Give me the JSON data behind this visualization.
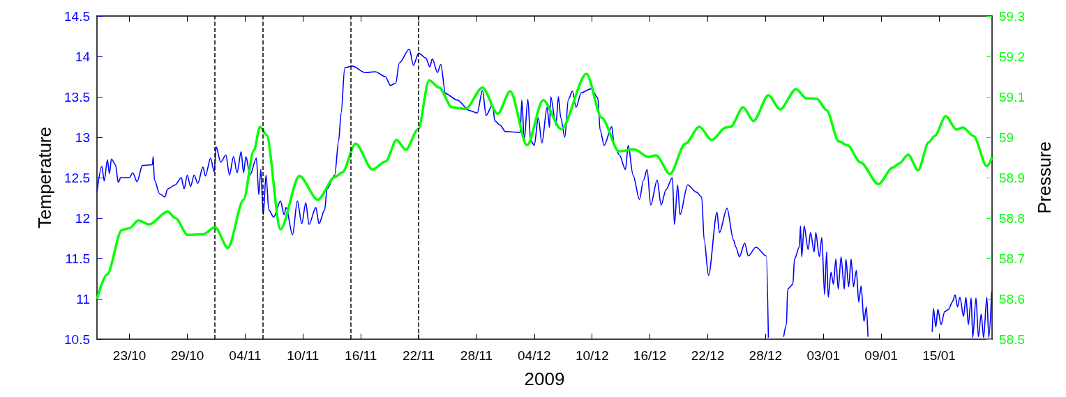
{
  "chart_data": {
    "type": "line",
    "xlabel": "2009",
    "ylabel": "Temperature",
    "y2label": "Pressure",
    "xlim": [
      "2009-10-19T15:00",
      "2010-01-20T12:00"
    ],
    "xticks": [
      {
        "value": "2009-10-23",
        "label": "23/10"
      },
      {
        "value": "2009-10-29",
        "label": "29/10"
      },
      {
        "value": "2009-11-04",
        "label": "04/11"
      },
      {
        "value": "2009-11-10",
        "label": "10/11"
      },
      {
        "value": "2009-11-16",
        "label": "16/11"
      },
      {
        "value": "2009-11-22",
        "label": "22/11"
      },
      {
        "value": "2009-11-28",
        "label": "28/11"
      },
      {
        "value": "2009-12-04",
        "label": "04/12"
      },
      {
        "value": "2009-12-10",
        "label": "10/12"
      },
      {
        "value": "2009-12-16",
        "label": "16/12"
      },
      {
        "value": "2009-12-22",
        "label": "22/12"
      },
      {
        "value": "2009-12-28",
        "label": "28/12"
      },
      {
        "value": "2010-01-03",
        "label": "03/01"
      },
      {
        "value": "2010-01-09",
        "label": "09/01"
      },
      {
        "value": "2010-01-15",
        "label": "15/01"
      }
    ],
    "ylim": [
      10.5,
      14.5
    ],
    "yticks": [
      10.5,
      11,
      11.5,
      12,
      12.5,
      13,
      13.5,
      14,
      14.5
    ],
    "y2lim": [
      58.5,
      59.3
    ],
    "y2ticks": [
      58.5,
      58.6,
      58.7,
      58.8,
      58.9,
      59,
      59.1,
      59.2,
      59.3
    ],
    "ref_lines": [
      {
        "axis": "x",
        "value": "2009-10-31T21:00",
        "color": "#000000",
        "line_style": "dashed"
      },
      {
        "axis": "x",
        "value": "2009-11-05T20:00",
        "color": "#000000",
        "line_style": "dashed"
      },
      {
        "axis": "x",
        "value": "2009-11-14T23:00",
        "color": "#000000",
        "line_style": "dashed"
      },
      {
        "axis": "x",
        "value": "2009-11-22T00:00",
        "color": "#000000",
        "line_style": "dashed"
      }
    ],
    "series": [
      {
        "color": "#0000ff",
        "axis": "y",
        "x": [
          "2009-10-19T15:00",
          "2009-10-20T03:00",
          "2009-10-20T09:00",
          "2009-10-20T17:00",
          "2009-10-20T22:00",
          "2009-10-21T03:00",
          "2009-10-21T13:00",
          "2009-10-21T20:00",
          "2009-10-22T02:00",
          "2009-10-23T00:00",
          "2009-10-23T08:00",
          "2009-10-23T19:00",
          "2009-10-24T08:00",
          "2009-10-25T09:00",
          "2009-10-25T11:00",
          "2009-10-25T14:00",
          "2009-10-26T03:00",
          "2009-10-26T16:00",
          "2009-10-26T23:00",
          "2009-10-27T18:00",
          "2009-10-28T09:00",
          "2009-10-28T16:00",
          "2009-10-29T00:00",
          "2009-10-29T08:00",
          "2009-10-29T17:00",
          "2009-10-30T02:00",
          "2009-10-30T15:00",
          "2009-10-30T21:00",
          "2009-10-31T10:00",
          "2009-10-31T19:00",
          "2009-11-01T00:00",
          "2009-11-01T11:00",
          "2009-11-02T00:00",
          "2009-11-02T09:00",
          "2009-11-02T19:00",
          "2009-11-03T04:00",
          "2009-11-03T14:00",
          "2009-11-03T20:00",
          "2009-11-04T02:00",
          "2009-11-04T12:00",
          "2009-11-05T04:00",
          "2009-11-05T10:00",
          "2009-11-05T15:00",
          "2009-11-05T21:00",
          "2009-11-06T04:00",
          "2009-11-06T11:00",
          "2009-11-06T23:00",
          "2009-11-07T16:00",
          "2009-11-08T01:00",
          "2009-11-08T06:00",
          "2009-11-08T22:00",
          "2009-11-09T10:00",
          "2009-11-09T21:00",
          "2009-11-10T07:00",
          "2009-11-10T15:00",
          "2009-11-11T08:00",
          "2009-11-11T16:00",
          "2009-11-12T06:00",
          "2009-11-12T12:00",
          "2009-11-13T07:00",
          "2009-11-13T17:00",
          "2009-11-13T23:00",
          "2009-11-14T08:00",
          "2009-11-15T03:00",
          "2009-11-16T11:00",
          "2009-11-17T12:00",
          "2009-11-18T13:00",
          "2009-11-19T02:00",
          "2009-11-19T15:00",
          "2009-11-20T00:00",
          "2009-11-21T01:00",
          "2009-11-21T11:00",
          "2009-11-22T00:00",
          "2009-11-22T18:00",
          "2009-11-23T04:00",
          "2009-11-23T10:00",
          "2009-11-23T23:00",
          "2009-11-24T07:00",
          "2009-11-24T19:00",
          "2009-11-26T00:00",
          "2009-11-27T07:00",
          "2009-11-28T02:00",
          "2009-11-28T15:00",
          "2009-11-29T00:00",
          "2009-11-29T16:00",
          "2009-11-29T22:00",
          "2009-11-30T11:00",
          "2009-12-01T00:00",
          "2009-12-02T13:00",
          "2009-12-02T17:00",
          "2009-12-02T23:00",
          "2009-12-03T08:00",
          "2009-12-03T15:00",
          "2009-12-04T00:00",
          "2009-12-04T10:00",
          "2009-12-04T19:00",
          "2009-12-05T08:00",
          "2009-12-05T14:00",
          "2009-12-05T17:00",
          "2009-12-06T06:00",
          "2009-12-06T12:00",
          "2009-12-06T18:00",
          "2009-12-07T04:00",
          "2009-12-07T13:00",
          "2009-12-07T23:00",
          "2009-12-08T08:00",
          "2009-12-08T21:00",
          "2009-12-09T22:00",
          "2009-12-10T14:00",
          "2009-12-10T20:00",
          "2009-12-11T06:00",
          "2009-12-12T01:00",
          "2009-12-12T07:00",
          "2009-12-12T20:00",
          "2009-12-13T11:00",
          "2009-12-13T18:00",
          "2009-12-14T06:00",
          "2009-12-14T22:00",
          "2009-12-15T08:00",
          "2009-12-15T17:00",
          "2009-12-16T02:00",
          "2009-12-16T18:00",
          "2009-12-17T04:00",
          "2009-12-17T16:00",
          "2009-12-18T08:00",
          "2009-12-18T13:00",
          "2009-12-18T21:00",
          "2009-12-19T03:00",
          "2009-12-19T22:00",
          "2009-12-20T20:00",
          "2009-12-21T09:00",
          "2009-12-21T15:00",
          "2009-12-22T02:00",
          "2009-12-22T23:00",
          "2009-12-23T05:00",
          "2009-12-24T00:00",
          "2009-12-24T16:00",
          "2009-12-24T22:00",
          "2009-12-25T07:00",
          "2009-12-25T20:00",
          "2009-12-26T05:00",
          "2009-12-27T00:00",
          "2009-12-28T02:00",
          "2009-12-28T07:00",
          "2009-12-28T21:00",
          "2009-12-29T21:00",
          "2009-12-30T04:00",
          "2009-12-30T07:00",
          "2009-12-30T20:00",
          "2009-12-31T00:00",
          "2009-12-31T12:00",
          "2009-12-31T15:00",
          "2009-12-31T18:00",
          "2010-01-01T00:00",
          "2010-01-01T10:00",
          "2010-01-01T16:00",
          "2010-01-02T01:00",
          "2010-01-02T05:00",
          "2010-01-02T14:00",
          "2010-01-02T20:00",
          "2010-01-03T03:00",
          "2010-01-03T08:00",
          "2010-01-03T12:00",
          "2010-01-03T19:00",
          "2010-01-04T01:00",
          "2010-01-04T07:00",
          "2010-01-04T13:00",
          "2010-01-04T20:00",
          "2010-01-05T04:00",
          "2010-01-05T08:00",
          "2010-01-05T15:00",
          "2010-01-05T21:00",
          "2010-01-06T03:00",
          "2010-01-06T10:00",
          "2010-01-06T16:00",
          "2010-01-06T22:00",
          "2010-01-07T05:00",
          "2010-01-07T11:00",
          "2010-01-07T15:00",
          "2010-01-08T06:00",
          "2010-01-14T07:00",
          "2010-01-14T10:00",
          "2010-01-14T16:00",
          "2010-01-14T21:00",
          "2010-01-15T05:00",
          "2010-01-15T14:00",
          "2010-01-16T00:00",
          "2010-01-16T09:00",
          "2010-01-16T16:00",
          "2010-01-16T22:00",
          "2010-01-17T04:00",
          "2010-01-17T13:00",
          "2010-01-17T19:00",
          "2010-01-18T01:00",
          "2010-01-18T08:00",
          "2010-01-18T12:00",
          "2010-01-18T20:00",
          "2010-01-19T02:00",
          "2010-01-19T09:00",
          "2010-01-19T15:00",
          "2010-01-19T23:00",
          "2010-01-20T04:00",
          "2010-01-20T11:00"
        ],
        "values": [
          12.32,
          12.64,
          12.46,
          12.72,
          12.55,
          12.73,
          12.66,
          12.44,
          12.5,
          12.5,
          12.56,
          12.45,
          12.65,
          12.66,
          12.76,
          12.47,
          12.3,
          12.26,
          12.36,
          12.41,
          12.5,
          12.36,
          12.53,
          12.39,
          12.53,
          12.43,
          12.63,
          12.52,
          12.74,
          12.57,
          12.88,
          12.69,
          12.78,
          12.53,
          12.76,
          12.56,
          12.82,
          12.56,
          12.76,
          12.53,
          12.74,
          12.29,
          12.6,
          12.04,
          12.53,
          12.1,
          12.01,
          12.21,
          12.04,
          12.13,
          11.79,
          12.21,
          11.93,
          12.19,
          11.92,
          12.13,
          11.93,
          12.1,
          12.36,
          12.53,
          12.96,
          13.3,
          13.86,
          13.88,
          13.8,
          13.81,
          13.75,
          13.64,
          13.67,
          13.92,
          14.09,
          13.89,
          14.04,
          13.98,
          13.87,
          13.97,
          13.8,
          13.9,
          13.54,
          13.46,
          13.33,
          13.3,
          13.58,
          13.27,
          13.4,
          13.2,
          13.15,
          13.07,
          13.06,
          13.46,
          12.96,
          13.47,
          12.96,
          12.9,
          13.24,
          12.93,
          13.37,
          13.12,
          13.5,
          13.15,
          13.5,
          13.24,
          13.0,
          13.47,
          13.57,
          13.37,
          13.55,
          13.6,
          13.49,
          13.09,
          12.9,
          13.13,
          12.9,
          12.78,
          12.6,
          12.9,
          12.53,
          12.23,
          12.47,
          12.6,
          12.16,
          12.47,
          12.16,
          12.35,
          12.5,
          11.92,
          12.41,
          12.04,
          12.41,
          12.32,
          12.26,
          11.73,
          11.29,
          12.07,
          11.82,
          12.12,
          11.73,
          11.64,
          11.52,
          11.69,
          11.53,
          11.64,
          11.53,
          10.52,
          null,
          10.53,
          10.68,
          11.12,
          11.18,
          11.49,
          11.64,
          11.9,
          11.52,
          11.9,
          11.61,
          11.82,
          11.58,
          11.82,
          11.52,
          11.76,
          11.05,
          11.58,
          11.02,
          11.33,
          11.18,
          11.49,
          11.12,
          11.52,
          11.12,
          11.49,
          11.15,
          11.49,
          11.15,
          11.35,
          10.96,
          11.16,
          10.72,
          10.9,
          10.53,
          null,
          10.59,
          10.88,
          10.65,
          10.87,
          10.68,
          10.84,
          10.87,
          10.96,
          11.05,
          10.9,
          11.02,
          10.78,
          11.02,
          10.68,
          11.01,
          10.52,
          11.01,
          10.53,
          10.81,
          10.52,
          11.02,
          10.52,
          11.09
        ]
      },
      {
        "color": "#00ff00",
        "axis": "y2",
        "x": [
          "2009-10-19T15:00",
          "2009-10-20T16:00",
          "2009-10-22T05:00",
          "2009-10-23T00:00",
          "2009-10-23T22:00",
          "2009-10-25T01:00",
          "2009-10-26T23:00",
          "2009-10-27T18:00",
          "2009-10-29T01:00",
          "2009-10-30T15:00",
          "2009-10-31T21:00",
          "2009-11-02T05:00",
          "2009-11-03T20:00",
          "2009-11-04T22:00",
          "2009-11-05T13:00",
          "2009-11-06T05:00",
          "2009-11-07T16:00",
          "2009-11-09T15:00",
          "2009-11-11T13:00",
          "2009-11-13T07:00",
          "2009-11-14T02:00",
          "2009-11-15T11:00",
          "2009-11-17T05:00",
          "2009-11-18T14:00",
          "2009-11-19T17:00",
          "2009-11-20T16:00",
          "2009-11-21T23:00",
          "2009-11-23T02:00",
          "2009-11-24T03:00",
          "2009-11-25T11:00",
          "2009-11-26T21:00",
          "2009-11-28T15:00",
          "2009-11-30T05:00",
          "2009-12-01T12:00",
          "2009-12-03T06:00",
          "2009-12-04T22:00",
          "2009-12-06T19:00",
          "2009-12-09T10:00",
          "2009-12-11T00:00",
          "2009-12-12T19:00",
          "2009-12-14T09:00",
          "2009-12-15T20:00",
          "2009-12-16T15:00",
          "2009-12-18T02:00",
          "2009-12-19T16:00",
          "2009-12-21T03:00",
          "2009-12-22T10:00",
          "2009-12-23T21:00",
          "2009-12-24T09:00",
          "2009-12-25T16:00",
          "2009-12-26T18:00",
          "2009-12-28T07:00",
          "2009-12-29T12:00",
          "2009-12-31T04:00",
          "2010-01-01T06:00",
          "2010-01-02T08:00",
          "2010-01-03T08:00",
          "2010-01-04T14:00",
          "2010-01-05T12:00",
          "2010-01-06T20:00",
          "2010-01-08T17:00",
          "2010-01-10T05:00",
          "2010-01-10T21:00",
          "2010-01-11T19:00",
          "2010-01-12T20:00",
          "2010-01-13T22:00",
          "2010-01-14T13:00",
          "2010-01-15T17:00",
          "2010-01-16T19:00",
          "2010-01-17T11:00",
          "2010-01-18T14:00",
          "2010-01-19T23:00",
          "2010-01-20T12:00"
        ],
        "values": [
          58.6,
          58.66,
          58.77,
          58.775,
          58.794,
          58.784,
          58.816,
          58.8,
          58.758,
          58.76,
          58.777,
          58.726,
          58.845,
          58.968,
          59.026,
          59.006,
          58.772,
          58.904,
          58.845,
          58.901,
          58.913,
          58.984,
          58.92,
          58.94,
          58.993,
          58.969,
          59.02,
          59.141,
          59.123,
          59.074,
          59.07,
          59.123,
          59.058,
          59.114,
          58.98,
          59.092,
          59.02,
          59.157,
          59.048,
          58.965,
          58.97,
          58.951,
          58.955,
          58.909,
          58.984,
          59.026,
          58.993,
          59.024,
          59.026,
          59.074,
          59.04,
          59.104,
          59.069,
          59.119,
          59.096,
          59.095,
          59.067,
          58.99,
          58.98,
          58.938,
          58.884,
          58.925,
          58.935,
          58.957,
          58.918,
          58.987,
          59.003,
          59.052,
          59.019,
          59.024,
          59.003,
          58.928,
          58.95
        ]
      }
    ]
  }
}
